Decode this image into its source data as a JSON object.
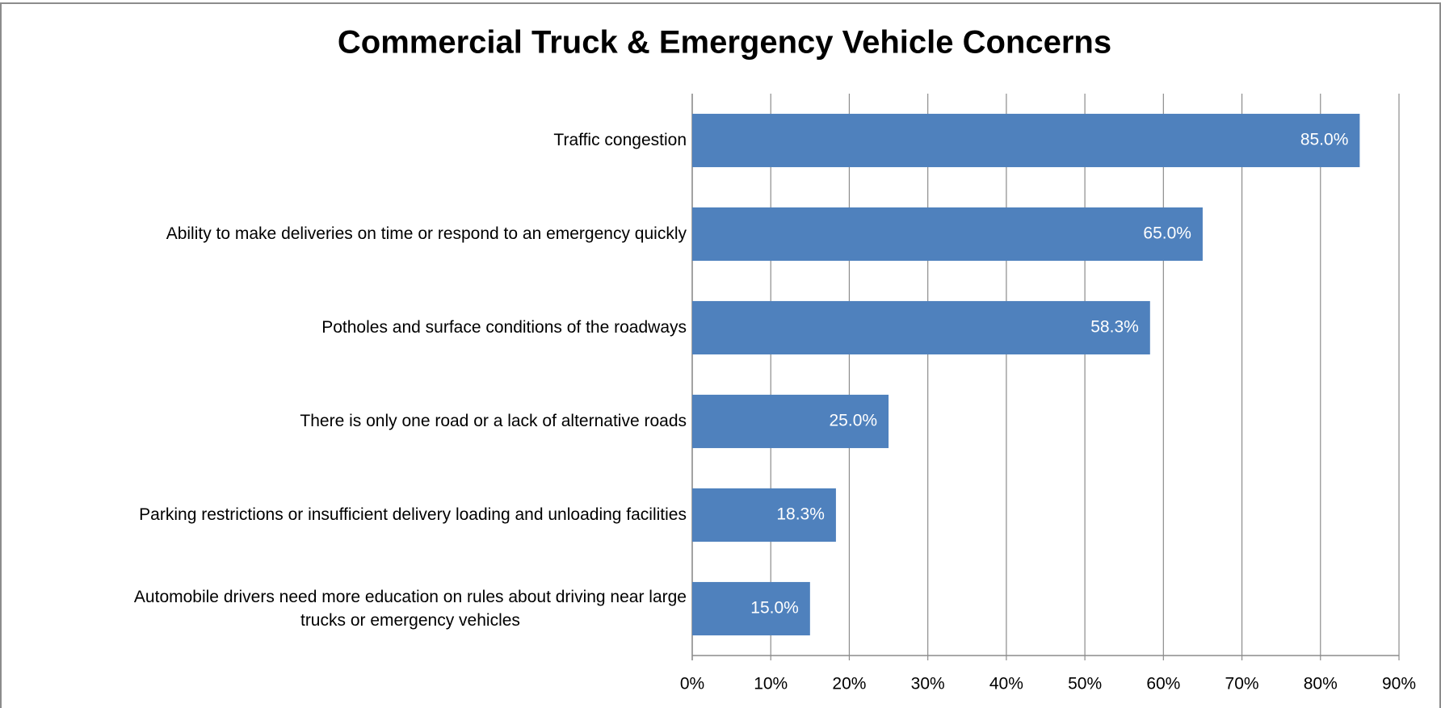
{
  "chart_data": {
    "type": "bar",
    "orientation": "horizontal",
    "title": "Commercial Truck & Emergency Vehicle Concerns",
    "categories": [
      "Traffic congestion",
      "Ability to make deliveries on time or respond to an emergency quickly",
      "Potholes and surface conditions of the roadways",
      "There is only one road or a lack of alternative roads",
      "Parking restrictions or insufficient delivery loading and unloading facilities",
      "Automobile drivers need more education on rules about driving near large\ntrucks or emergency vehicles"
    ],
    "values": [
      85,
      65,
      58.3,
      25,
      18.3,
      15
    ],
    "value_labels": [
      "85.0%",
      "65.0%",
      "58.3%",
      "25.0%",
      "18.3%",
      "15.0%"
    ],
    "color": "#4f81bd",
    "xlim": [
      0,
      90
    ],
    "xticks": [
      {
        "value": 0,
        "label": "0%"
      },
      {
        "value": 10,
        "label": "10%"
      },
      {
        "value": 20,
        "label": "20%"
      },
      {
        "value": 30,
        "label": "30%"
      },
      {
        "value": 40,
        "label": "40%"
      },
      {
        "value": 50,
        "label": "50%"
      },
      {
        "value": 60,
        "label": "60%"
      },
      {
        "value": 70,
        "label": "70%"
      },
      {
        "value": 80,
        "label": "80%"
      },
      {
        "value": 90,
        "label": "90%"
      }
    ],
    "grid": true
  }
}
